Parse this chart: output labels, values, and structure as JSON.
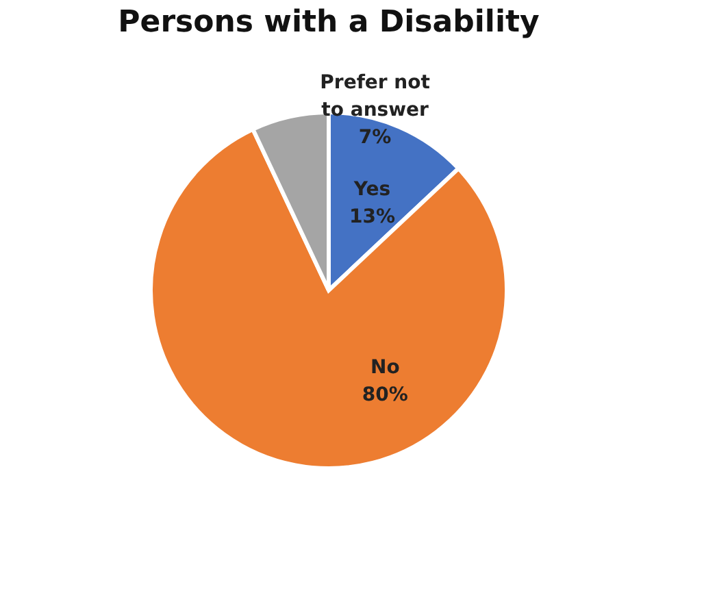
{
  "chart_data": {
    "type": "pie",
    "title": "Persons with a Disability",
    "categories": [
      "Yes",
      "No",
      "Prefer not to answer"
    ],
    "values": [
      13,
      80,
      7
    ],
    "colors": [
      "#4472c4",
      "#ed7d31",
      "#a5a5a5"
    ],
    "value_labels": [
      "13%",
      "80%",
      "7%"
    ],
    "legend": false
  }
}
